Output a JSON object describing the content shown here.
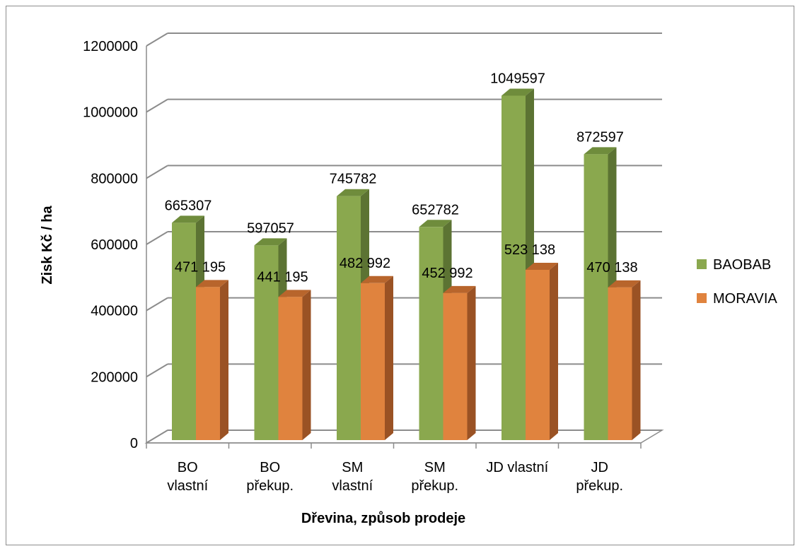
{
  "chart_data": {
    "type": "bar",
    "title": "",
    "xlabel": "Dřevina, způsob prodeje",
    "ylabel": "Zisk Kč / ha",
    "ylim": [
      0,
      1200000
    ],
    "y_ticks": [
      "0",
      "200000",
      "400000",
      "600000",
      "800000",
      "1000000",
      "1200000"
    ],
    "y_tick_values": [
      0,
      200000,
      400000,
      600000,
      800000,
      1000000,
      1200000
    ],
    "grid": true,
    "legend_position": "right",
    "categories": [
      [
        "BO",
        "vlastní"
      ],
      [
        "BO",
        "překup."
      ],
      [
        "SM",
        "vlastní"
      ],
      [
        "SM",
        "překup."
      ],
      [
        "JD vlastní"
      ],
      [
        "JD",
        "překup."
      ]
    ],
    "series": [
      {
        "name": "BAOBAB",
        "color": "#8aa84e",
        "side_color": "#5c7333",
        "top_color": "#6f8c3c",
        "values": [
          665307,
          597057,
          745782,
          652782,
          1049597,
          872597
        ],
        "labels": [
          "665307",
          "597057",
          "745782",
          "652782",
          "1049597",
          "872597"
        ]
      },
      {
        "name": "MORAVIA",
        "color": "#e0833e",
        "side_color": "#9a5224",
        "top_color": "#b8652c",
        "values": [
          471195,
          441195,
          482992,
          452992,
          523138,
          470138
        ],
        "labels": [
          "471 195",
          "441 195",
          "482 992",
          "452 992",
          "523 138",
          "470 138"
        ]
      }
    ]
  }
}
